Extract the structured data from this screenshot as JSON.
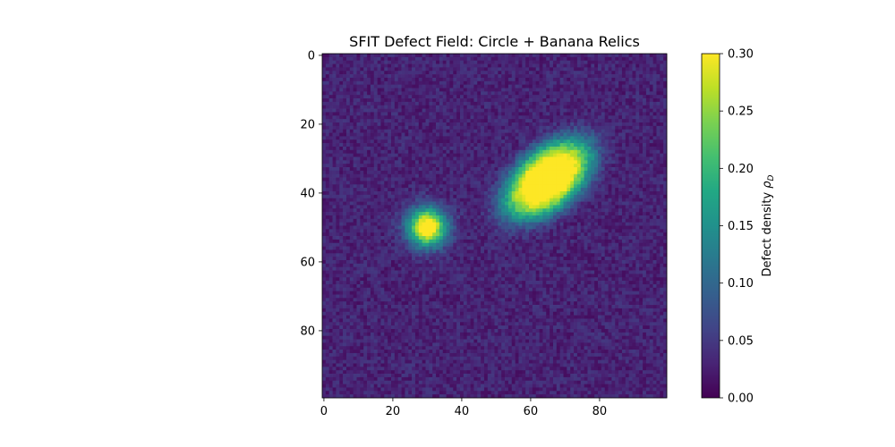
{
  "chart_data": {
    "type": "heatmap",
    "title": "SFIT Defect Field: Circle + Banana Relics",
    "grid_size": [
      100,
      100
    ],
    "x_ticks": [
      0,
      20,
      40,
      60,
      80
    ],
    "y_ticks": [
      0,
      20,
      40,
      60,
      80
    ],
    "xlim": [
      -0.5,
      99.5
    ],
    "ylim": [
      99.5,
      -0.5
    ],
    "y_axis_inverted": true,
    "colormap": "viridis",
    "colorbar": {
      "label": "Defect density ρ_D",
      "label_prefix": "Defect density ",
      "label_symbol": "ρ",
      "label_subscript": "D",
      "range": [
        0.0,
        0.3
      ],
      "ticks": [
        "0.00",
        "0.05",
        "0.10",
        "0.15",
        "0.20",
        "0.25",
        "0.30"
      ]
    },
    "background_level": 0.03,
    "noise_amplitude": 0.02,
    "features": [
      {
        "name": "circle",
        "center_x": 30,
        "center_y": 50,
        "sigma": 3.8,
        "peak": 0.32
      },
      {
        "name": "banana",
        "center_x": 65,
        "center_y": 36,
        "sigma_major": 10.5,
        "sigma_minor": 6.0,
        "angle_deg": -40,
        "peak": 0.33
      }
    ]
  }
}
